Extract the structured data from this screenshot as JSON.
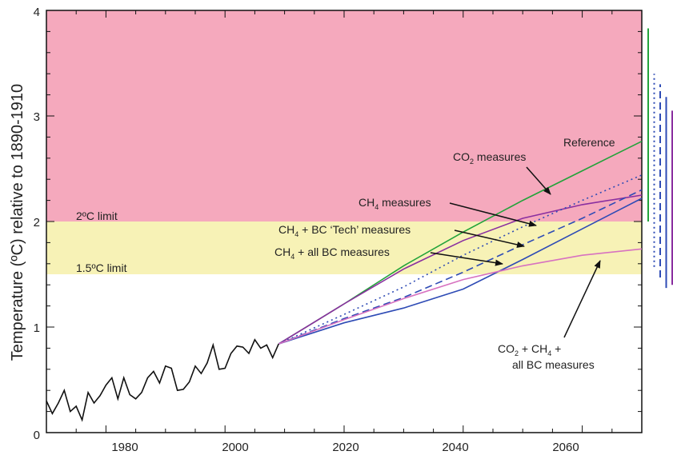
{
  "chart_data": {
    "type": "line",
    "xlabel": "",
    "ylabel": "Temperature (ºC) relative to 1890-1910",
    "xlim": [
      1970,
      2070
    ],
    "ylim": [
      0,
      4
    ],
    "x_ticks": [
      "1980",
      "2000",
      "2020",
      "2040",
      "2060"
    ],
    "y_ticks": [
      "0",
      "1",
      "2",
      "3",
      "4"
    ],
    "bands": [
      {
        "label": "2ºC limit",
        "from": 2,
        "to": 4,
        "color": "#f5a9bd"
      },
      {
        "label": "1.5ºC limit",
        "from": 1.5,
        "to": 2,
        "color": "#f7f2b6"
      }
    ],
    "observed": {
      "color": "#111111",
      "x": [
        1970,
        1971,
        1972,
        1973,
        1974,
        1975,
        1976,
        1977,
        1978,
        1979,
        1980,
        1981,
        1982,
        1983,
        1984,
        1985,
        1986,
        1987,
        1988,
        1989,
        1990,
        1991,
        1992,
        1993,
        1994,
        1995,
        1996,
        1997,
        1998,
        1999,
        2000,
        2001,
        2002,
        2003,
        2004,
        2005,
        2006,
        2007,
        2008,
        2009
      ],
      "y": [
        0.3,
        0.18,
        0.28,
        0.4,
        0.2,
        0.25,
        0.12,
        0.38,
        0.28,
        0.35,
        0.45,
        0.52,
        0.32,
        0.52,
        0.36,
        0.32,
        0.38,
        0.52,
        0.58,
        0.47,
        0.63,
        0.61,
        0.4,
        0.41,
        0.48,
        0.63,
        0.56,
        0.66,
        0.83,
        0.6,
        0.61,
        0.75,
        0.82,
        0.81,
        0.75,
        0.88,
        0.8,
        0.83,
        0.71,
        0.84
      ]
    },
    "series": [
      {
        "color": "#22a33a",
        "dash": "solid",
        "x": [
          2009,
          2020,
          2030,
          2040,
          2050,
          2060,
          2070
        ],
        "y": [
          0.84,
          1.22,
          1.58,
          1.9,
          2.2,
          2.48,
          2.76
        ]
      },
      {
        "color": "#8a2fa0",
        "dash": "solid",
        "x": [
          2009,
          2020,
          2030,
          2040,
          2050,
          2060,
          2070
        ],
        "y": [
          0.84,
          1.22,
          1.55,
          1.82,
          2.03,
          2.16,
          2.25
        ]
      },
      {
        "color": "#2e4bb5",
        "dash": "dotted",
        "x": [
          2009,
          2020,
          2030,
          2040,
          2050,
          2060,
          2070
        ],
        "y": [
          0.84,
          1.12,
          1.38,
          1.68,
          1.95,
          2.2,
          2.44
        ]
      },
      {
        "color": "#2e4bb5",
        "dash": "dashed",
        "x": [
          2009,
          2020,
          2030,
          2040,
          2050,
          2060,
          2070
        ],
        "y": [
          0.84,
          1.08,
          1.28,
          1.52,
          1.78,
          2.03,
          2.3
        ]
      },
      {
        "color": "#2e4bb5",
        "dash": "solid",
        "x": [
          2009,
          2020,
          2030,
          2040,
          2050,
          2060,
          2070
        ],
        "y": [
          0.84,
          1.04,
          1.18,
          1.36,
          1.64,
          1.93,
          2.22
        ]
      },
      {
        "color": "#d772c0",
        "dash": "solid",
        "x": [
          2009,
          2020,
          2030,
          2040,
          2050,
          2060,
          2070
        ],
        "y": [
          0.84,
          1.07,
          1.27,
          1.45,
          1.58,
          1.68,
          1.74
        ]
      }
    ],
    "range_bars": [
      {
        "color": "#22a33a",
        "dash": "solid",
        "y": [
          2.0,
          3.83
        ]
      },
      {
        "color": "#2e4bb5",
        "dash": "dotted",
        "y": [
          1.57,
          3.4
        ]
      },
      {
        "color": "#2e4bb5",
        "dash": "dashed",
        "y": [
          1.47,
          3.3
        ]
      },
      {
        "color": "#2e4bb5",
        "dash": "solid",
        "y": [
          1.37,
          3.18
        ]
      },
      {
        "color": "#8a2fa0",
        "dash": "solid",
        "y": [
          1.4,
          3.05
        ]
      }
    ],
    "annotations": {
      "reference": "Reference",
      "co2_prefix": "CO",
      "co2_sub": "2",
      "co2_suffix": " measures",
      "ch4_prefix": "CH",
      "ch4_sub": "4",
      "ch4_suffix": " measures",
      "ch4_bc_tech_prefix": "CH",
      "ch4_bc_tech_sub": "4",
      "ch4_bc_tech_suffix": " + BC ‘Tech’ measures",
      "ch4_allbc_prefix": "CH",
      "ch4_allbc_sub": "4",
      "ch4_allbc_suffix": " + all BC measures",
      "combo_line1_a": "CO",
      "combo_line1_a_sub": "2",
      "combo_line1_b": " + CH",
      "combo_line1_b_sub": "4",
      "combo_line1_c": " +",
      "combo_line2": "all BC measures"
    }
  }
}
